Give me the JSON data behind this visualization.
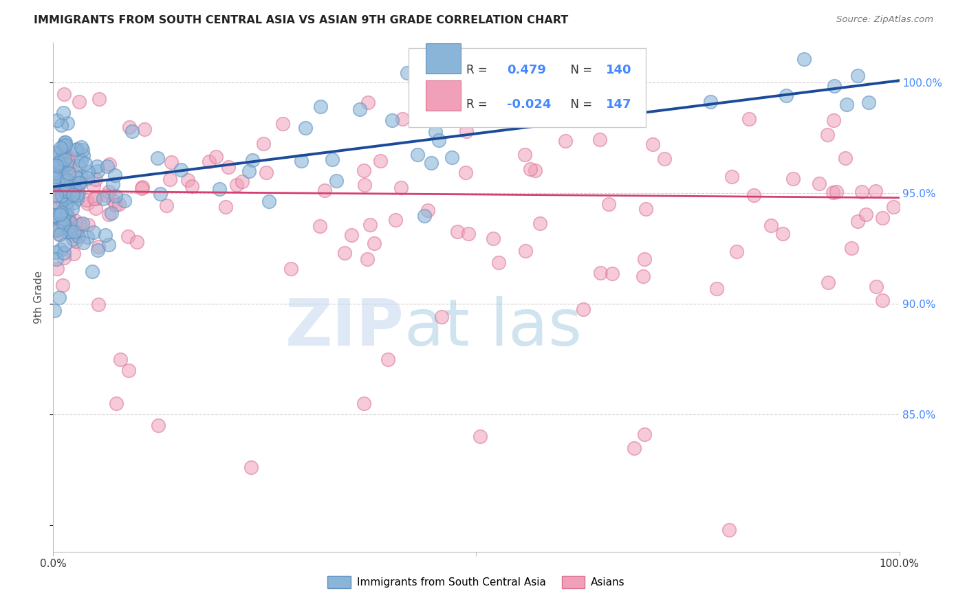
{
  "title": "IMMIGRANTS FROM SOUTH CENTRAL ASIA VS ASIAN 9TH GRADE CORRELATION CHART",
  "source": "Source: ZipAtlas.com",
  "ylabel": "9th Grade",
  "ytick_labels": [
    "100.0%",
    "95.0%",
    "90.0%",
    "85.0%"
  ],
  "ytick_values": [
    1.0,
    0.95,
    0.9,
    0.85
  ],
  "xlim": [
    0.0,
    1.0
  ],
  "ylim": [
    0.788,
    1.018
  ],
  "blue_R": 0.479,
  "blue_N": 140,
  "pink_R": -0.024,
  "pink_N": 147,
  "blue_color": "#8ab4d8",
  "pink_color": "#f0a0b8",
  "blue_edge_color": "#6090c0",
  "pink_edge_color": "#d87090",
  "blue_line_color": "#1a4a99",
  "pink_line_color": "#d44070",
  "legend_label_blue": "Immigrants from South Central Asia",
  "legend_label_pink": "Asians",
  "watermark_zip": "ZIP",
  "watermark_atlas": "atlas",
  "background_color": "#ffffff",
  "grid_color": "#d0d0d0",
  "title_color": "#222222",
  "right_tick_color": "#4488ff",
  "blue_line_start_y": 0.953,
  "blue_line_end_y": 1.001,
  "pink_line_start_y": 0.951,
  "pink_line_end_y": 0.948
}
